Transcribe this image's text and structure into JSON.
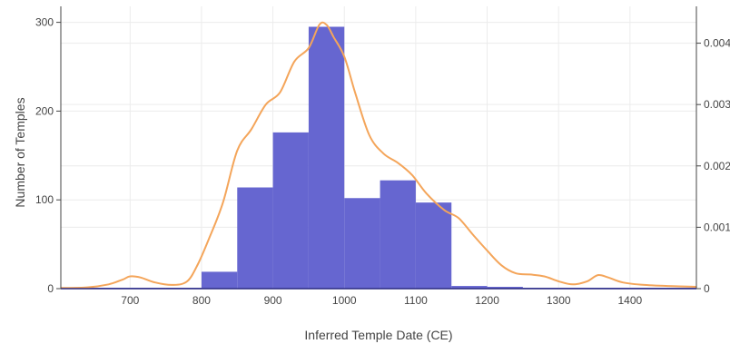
{
  "chart_data": {
    "type": "bar",
    "subtype": "histogram-with-density-line",
    "title": "",
    "xlabel": "Inferred Temple Date (CE)",
    "ylabel": "Number of Temples",
    "y2label": "",
    "xlim": [
      603,
      1493
    ],
    "ylim": [
      0,
      318
    ],
    "y2lim": [
      0,
      0.0046
    ],
    "grid": true,
    "legend": "none",
    "colors": {
      "bars": "#6666d0",
      "density": "#f4a55a",
      "grid": "#ececec",
      "text": "#444444"
    },
    "x_ticks": [
      {
        "value": 700,
        "label": "700"
      },
      {
        "value": 800,
        "label": "800"
      },
      {
        "value": 900,
        "label": "900"
      },
      {
        "value": 1000,
        "label": "1000"
      },
      {
        "value": 1100,
        "label": "1100"
      },
      {
        "value": 1200,
        "label": "1200"
      },
      {
        "value": 1300,
        "label": "1300"
      },
      {
        "value": 1400,
        "label": "1400"
      }
    ],
    "y_ticks": [
      {
        "value": 0,
        "label": "0"
      },
      {
        "value": 100,
        "label": "100"
      },
      {
        "value": 200,
        "label": "200"
      },
      {
        "value": 300,
        "label": "300"
      }
    ],
    "y2_ticks": [
      {
        "value": 0,
        "label": "0"
      },
      {
        "value": 0.001,
        "label": "0.001"
      },
      {
        "value": 0.002,
        "label": "0.002"
      },
      {
        "value": 0.003,
        "label": "0.003"
      },
      {
        "value": 0.004,
        "label": "0.004"
      }
    ],
    "bins": [
      {
        "x0": 600,
        "x1": 650,
        "count": 1
      },
      {
        "x0": 650,
        "x1": 700,
        "count": 1
      },
      {
        "x0": 700,
        "x1": 750,
        "count": 1
      },
      {
        "x0": 750,
        "x1": 800,
        "count": 1
      },
      {
        "x0": 800,
        "x1": 850,
        "count": 19
      },
      {
        "x0": 850,
        "x1": 900,
        "count": 114
      },
      {
        "x0": 900,
        "x1": 950,
        "count": 176
      },
      {
        "x0": 950,
        "x1": 1000,
        "count": 295
      },
      {
        "x0": 1000,
        "x1": 1050,
        "count": 102
      },
      {
        "x0": 1050,
        "x1": 1100,
        "count": 122
      },
      {
        "x0": 1100,
        "x1": 1150,
        "count": 97
      },
      {
        "x0": 1150,
        "x1": 1200,
        "count": 3
      },
      {
        "x0": 1200,
        "x1": 1250,
        "count": 2
      },
      {
        "x0": 1250,
        "x1": 1300,
        "count": 1
      },
      {
        "x0": 1300,
        "x1": 1350,
        "count": 1
      },
      {
        "x0": 1350,
        "x1": 1400,
        "count": 1
      },
      {
        "x0": 1400,
        "x1": 1450,
        "count": 1
      },
      {
        "x0": 1450,
        "x1": 1500,
        "count": 1
      }
    ],
    "density": {
      "name": "",
      "x": [
        603,
        640,
        670,
        690,
        700,
        715,
        735,
        760,
        780,
        795,
        810,
        830,
        850,
        870,
        890,
        910,
        930,
        950,
        965,
        975,
        985,
        1000,
        1015,
        1035,
        1055,
        1075,
        1095,
        1115,
        1140,
        1160,
        1180,
        1200,
        1220,
        1240,
        1260,
        1280,
        1300,
        1320,
        1340,
        1355,
        1370,
        1390,
        1420,
        1460,
        1493
      ],
      "y": [
        1e-05,
        2e-05,
        7e-05,
        0.00015,
        0.0002,
        0.00018,
        0.0001,
        6e-05,
        0.00012,
        0.0004,
        0.0008,
        0.0014,
        0.00225,
        0.0026,
        0.003,
        0.0032,
        0.0037,
        0.00392,
        0.0043,
        0.0043,
        0.0041,
        0.00378,
        0.0032,
        0.0025,
        0.0022,
        0.00205,
        0.00185,
        0.00155,
        0.00128,
        0.00115,
        0.00088,
        0.00062,
        0.00038,
        0.00025,
        0.00023,
        0.0002,
        0.00012,
        7e-05,
        0.00012,
        0.00022,
        0.00018,
        0.0001,
        6e-05,
        4e-05,
        3e-05
      ]
    }
  }
}
